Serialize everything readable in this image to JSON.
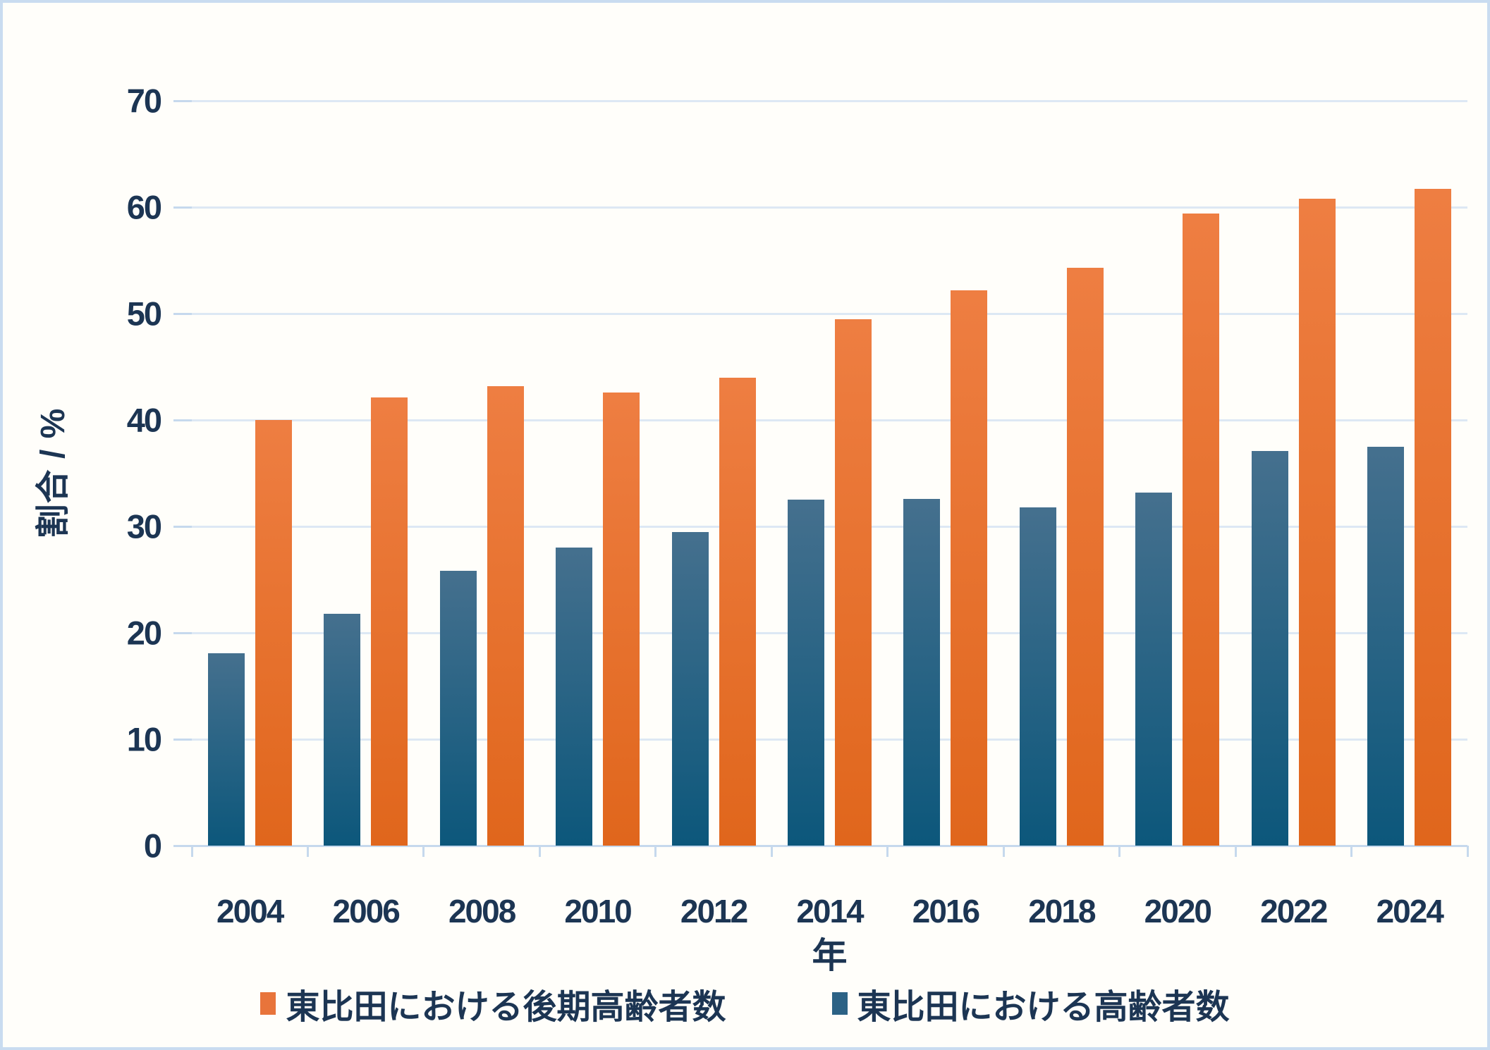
{
  "style": {
    "background": "#FFFEFA",
    "border": "#C9DCF0",
    "text": "#1C3553",
    "gridline": "#DDE8F4",
    "axis_line": "#C6D9ED"
  },
  "chart": {
    "legend": [
      {
        "label": "東比田における後期高齢者数",
        "color": "#E8743B"
      },
      {
        "label": "東比田における高齢者数",
        "color": "#2C6285"
      }
    ]
  },
  "chart_data": {
    "type": "bar",
    "title": "",
    "xlabel": "年",
    "ylabel": "割合 / %",
    "ylim": [
      0,
      70
    ],
    "yticks": [
      0,
      10,
      20,
      30,
      40,
      50,
      60,
      70
    ],
    "grid": true,
    "legend_position": "bottom",
    "categories": [
      "2004",
      "2006",
      "2008",
      "2010",
      "2012",
      "2014",
      "2016",
      "2018",
      "2020",
      "2022",
      "2024"
    ],
    "series": [
      {
        "key": "elderly",
        "name": "東比田における高齢者数",
        "slot": "left",
        "color_top": "#45708E",
        "color_bottom": "#0C577B",
        "values": [
          18.1,
          21.8,
          25.8,
          28.0,
          29.5,
          32.5,
          32.6,
          31.8,
          33.2,
          37.1,
          37.5
        ]
      },
      {
        "key": "late-elderly",
        "name": "東比田における後期高齢者数",
        "slot": "right",
        "color_top": "#EE7E42",
        "color_bottom": "#E0661C",
        "values": [
          40.0,
          42.1,
          43.2,
          42.6,
          44.0,
          49.5,
          52.2,
          54.3,
          59.4,
          60.8,
          61.7
        ]
      }
    ]
  }
}
